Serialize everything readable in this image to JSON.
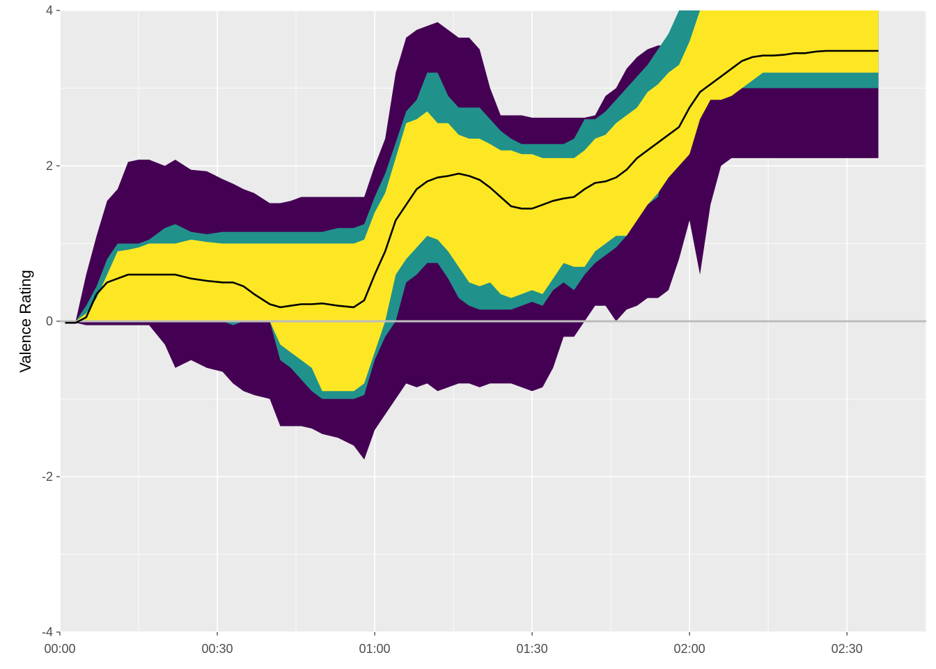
{
  "chart_data": {
    "type": "area",
    "title": "",
    "xlabel": "",
    "ylabel": "Valence Rating",
    "xlim_seconds": [
      0,
      167
    ],
    "ylim": [
      -4,
      4
    ],
    "x_ticks": [
      {
        "value": 0,
        "label": "00:00"
      },
      {
        "value": 30,
        "label": "00:30"
      },
      {
        "value": 60,
        "label": "01:00"
      },
      {
        "value": 90,
        "label": "01:30"
      },
      {
        "value": 120,
        "label": "02:00"
      },
      {
        "value": 150,
        "label": "02:30"
      }
    ],
    "y_ticks": [
      {
        "value": -4,
        "label": "-4"
      },
      {
        "value": -2,
        "label": "-2"
      },
      {
        "value": 0,
        "label": "0"
      },
      {
        "value": 2,
        "label": "2"
      },
      {
        "value": 4,
        "label": "4"
      }
    ],
    "grid": true,
    "reference_line_y": 0,
    "x": [
      1,
      3,
      5,
      7,
      9,
      11,
      13,
      15,
      17,
      20,
      22,
      25,
      28,
      31,
      33,
      35,
      37,
      40,
      42,
      44,
      46,
      48,
      50,
      53,
      56,
      58,
      60,
      62,
      64,
      66,
      68,
      70,
      72,
      74,
      76,
      78,
      80,
      82,
      84,
      86,
      88,
      90,
      92,
      94,
      96,
      98,
      100,
      102,
      104,
      106,
      108,
      110,
      112,
      114,
      116,
      118,
      120,
      122,
      124,
      126,
      128,
      130,
      132,
      134,
      136,
      138,
      140,
      142,
      144,
      146,
      148,
      150,
      152,
      154,
      156
    ],
    "series": [
      {
        "values": [
          [
            -0.02,
            0.0
          ],
          [
            -0.02,
            0.0
          ],
          [
            -0.05,
            0.6
          ],
          [
            -0.05,
            1.1
          ],
          [
            -0.05,
            1.55
          ],
          [
            -0.05,
            1.7
          ],
          [
            -0.05,
            2.05
          ],
          [
            -0.05,
            2.08
          ],
          [
            -0.05,
            2.08
          ],
          [
            -0.3,
            2.0
          ],
          [
            -0.6,
            2.08
          ],
          [
            -0.5,
            1.95
          ],
          [
            -0.6,
            1.93
          ],
          [
            -0.65,
            1.83
          ],
          [
            -0.8,
            1.77
          ],
          [
            -0.9,
            1.7
          ],
          [
            -0.95,
            1.65
          ],
          [
            -1.0,
            1.52
          ],
          [
            -1.35,
            1.52
          ],
          [
            -1.35,
            1.55
          ],
          [
            -1.35,
            1.6
          ],
          [
            -1.38,
            1.6
          ],
          [
            -1.45,
            1.6
          ],
          [
            -1.5,
            1.6
          ],
          [
            -1.6,
            1.6
          ],
          [
            -1.78,
            1.6
          ],
          [
            -1.4,
            2.0
          ],
          [
            -1.2,
            2.35
          ],
          [
            -1.0,
            3.2
          ],
          [
            -0.8,
            3.65
          ],
          [
            -0.85,
            3.75
          ],
          [
            -0.8,
            3.8
          ],
          [
            -0.9,
            3.85
          ],
          [
            -0.85,
            3.75
          ],
          [
            -0.8,
            3.65
          ],
          [
            -0.8,
            3.65
          ],
          [
            -0.85,
            3.5
          ],
          [
            -0.8,
            3.0
          ],
          [
            -0.8,
            2.65
          ],
          [
            -0.8,
            2.65
          ],
          [
            -0.85,
            2.65
          ],
          [
            -0.9,
            2.62
          ],
          [
            -0.85,
            2.62
          ],
          [
            -0.6,
            2.62
          ],
          [
            -0.2,
            2.62
          ],
          [
            -0.2,
            2.62
          ],
          [
            0.0,
            2.62
          ],
          [
            0.2,
            2.65
          ],
          [
            0.2,
            2.9
          ],
          [
            0.0,
            3.0
          ],
          [
            0.15,
            3.25
          ],
          [
            0.2,
            3.4
          ],
          [
            0.3,
            3.5
          ],
          [
            0.3,
            3.55
          ],
          [
            0.4,
            3.55
          ],
          [
            0.8,
            3.6
          ],
          [
            1.3,
            3.8
          ],
          [
            0.6,
            4.0
          ],
          [
            1.5,
            4.0
          ],
          [
            2.0,
            4.0
          ],
          [
            2.1,
            4.0
          ],
          [
            2.1,
            4.0
          ],
          [
            2.1,
            4.0
          ],
          [
            2.1,
            4.0
          ],
          [
            2.1,
            4.0
          ],
          [
            2.1,
            4.0
          ],
          [
            2.1,
            4.0
          ],
          [
            2.1,
            4.0
          ],
          [
            2.1,
            4.0
          ],
          [
            2.1,
            4.0
          ],
          [
            2.1,
            4.0
          ],
          [
            2.1,
            4.0
          ],
          [
            2.1,
            4.0
          ],
          [
            2.1,
            4.0
          ],
          [
            2.1,
            4.0
          ]
        ]
      },
      {
        "values": [
          [
            -0.02,
            0.0
          ],
          [
            -0.02,
            0.0
          ],
          [
            0.0,
            0.2
          ],
          [
            0.0,
            0.45
          ],
          [
            0.0,
            0.8
          ],
          [
            0.0,
            1.0
          ],
          [
            0.0,
            1.0
          ],
          [
            0.0,
            1.0
          ],
          [
            0.0,
            1.05
          ],
          [
            0.0,
            1.2
          ],
          [
            0.0,
            1.25
          ],
          [
            0.0,
            1.15
          ],
          [
            0.0,
            1.12
          ],
          [
            0.0,
            1.15
          ],
          [
            -0.05,
            1.15
          ],
          [
            0.0,
            1.15
          ],
          [
            0.0,
            1.15
          ],
          [
            0.0,
            1.15
          ],
          [
            -0.5,
            1.15
          ],
          [
            -0.6,
            1.15
          ],
          [
            -0.75,
            1.15
          ],
          [
            -0.9,
            1.15
          ],
          [
            -1.0,
            1.15
          ],
          [
            -1.0,
            1.2
          ],
          [
            -1.0,
            1.2
          ],
          [
            -0.95,
            1.25
          ],
          [
            -0.5,
            1.6
          ],
          [
            -0.2,
            1.9
          ],
          [
            0.0,
            2.3
          ],
          [
            0.5,
            2.7
          ],
          [
            0.6,
            2.85
          ],
          [
            0.75,
            3.2
          ],
          [
            0.75,
            3.2
          ],
          [
            0.55,
            2.9
          ],
          [
            0.3,
            2.75
          ],
          [
            0.2,
            2.75
          ],
          [
            0.15,
            2.75
          ],
          [
            0.15,
            2.6
          ],
          [
            0.15,
            2.45
          ],
          [
            0.15,
            2.35
          ],
          [
            0.2,
            2.28
          ],
          [
            0.25,
            2.28
          ],
          [
            0.2,
            2.28
          ],
          [
            0.4,
            2.28
          ],
          [
            0.5,
            2.28
          ],
          [
            0.4,
            2.35
          ],
          [
            0.6,
            2.6
          ],
          [
            0.75,
            2.6
          ],
          [
            0.85,
            2.7
          ],
          [
            0.95,
            2.85
          ],
          [
            1.1,
            3.0
          ],
          [
            1.3,
            3.15
          ],
          [
            1.5,
            3.3
          ],
          [
            1.6,
            3.5
          ],
          [
            2.3,
            3.7
          ],
          [
            2.3,
            4.0
          ],
          [
            2.5,
            4.0
          ],
          [
            2.8,
            4.0
          ],
          [
            3.0,
            4.0
          ],
          [
            3.0,
            4.0
          ],
          [
            3.0,
            4.0
          ],
          [
            3.0,
            4.0
          ],
          [
            3.0,
            4.0
          ],
          [
            3.0,
            4.0
          ],
          [
            3.0,
            4.0
          ],
          [
            3.0,
            4.0
          ],
          [
            3.0,
            4.0
          ],
          [
            3.0,
            4.0
          ],
          [
            3.0,
            4.0
          ],
          [
            3.0,
            4.0
          ],
          [
            3.0,
            4.0
          ],
          [
            3.0,
            4.0
          ],
          [
            3.0,
            4.0
          ],
          [
            3.0,
            4.0
          ],
          [
            3.0,
            4.0
          ]
        ]
      },
      {
        "values": [
          [
            -0.02,
            0.0
          ],
          [
            -0.02,
            0.0
          ],
          [
            0.0,
            0.1
          ],
          [
            0.0,
            0.3
          ],
          [
            0.0,
            0.6
          ],
          [
            0.0,
            0.9
          ],
          [
            0.0,
            0.92
          ],
          [
            0.0,
            0.95
          ],
          [
            0.0,
            1.0
          ],
          [
            0.0,
            1.0
          ],
          [
            0.0,
            1.0
          ],
          [
            0.0,
            1.05
          ],
          [
            0.0,
            1.02
          ],
          [
            0.0,
            1.0
          ],
          [
            0.0,
            1.0
          ],
          [
            0.0,
            1.0
          ],
          [
            0.0,
            1.0
          ],
          [
            0.0,
            1.0
          ],
          [
            -0.3,
            1.0
          ],
          [
            -0.4,
            1.0
          ],
          [
            -0.5,
            1.0
          ],
          [
            -0.6,
            1.0
          ],
          [
            -0.9,
            1.0
          ],
          [
            -0.9,
            1.0
          ],
          [
            -0.9,
            1.0
          ],
          [
            -0.8,
            1.05
          ],
          [
            -0.4,
            1.4
          ],
          [
            0.0,
            1.65
          ],
          [
            0.6,
            2.1
          ],
          [
            0.8,
            2.55
          ],
          [
            0.95,
            2.6
          ],
          [
            1.1,
            2.7
          ],
          [
            1.05,
            2.55
          ],
          [
            0.9,
            2.55
          ],
          [
            0.7,
            2.4
          ],
          [
            0.5,
            2.35
          ],
          [
            0.45,
            2.35
          ],
          [
            0.5,
            2.28
          ],
          [
            0.35,
            2.2
          ],
          [
            0.3,
            2.2
          ],
          [
            0.35,
            2.15
          ],
          [
            0.4,
            2.15
          ],
          [
            0.35,
            2.1
          ],
          [
            0.55,
            2.1
          ],
          [
            0.75,
            2.1
          ],
          [
            0.7,
            2.1
          ],
          [
            0.7,
            2.2
          ],
          [
            0.9,
            2.35
          ],
          [
            1.0,
            2.4
          ],
          [
            1.1,
            2.55
          ],
          [
            1.1,
            2.65
          ],
          [
            1.3,
            2.75
          ],
          [
            1.5,
            2.95
          ],
          [
            1.65,
            3.05
          ],
          [
            1.85,
            3.2
          ],
          [
            2.0,
            3.3
          ],
          [
            2.15,
            3.6
          ],
          [
            2.6,
            4.0
          ],
          [
            2.85,
            4.0
          ],
          [
            2.85,
            4.0
          ],
          [
            2.9,
            4.0
          ],
          [
            3.0,
            4.0
          ],
          [
            3.1,
            4.0
          ],
          [
            3.2,
            4.0
          ],
          [
            3.2,
            4.0
          ],
          [
            3.2,
            4.0
          ],
          [
            3.2,
            4.0
          ],
          [
            3.2,
            4.0
          ],
          [
            3.2,
            4.0
          ],
          [
            3.2,
            4.0
          ],
          [
            3.2,
            4.0
          ],
          [
            3.2,
            4.0
          ],
          [
            3.2,
            4.0
          ],
          [
            3.2,
            4.0
          ],
          [
            3.2,
            4.0
          ]
        ]
      },
      {
        "values": [
          -0.02,
          -0.02,
          0.05,
          0.35,
          0.5,
          0.55,
          0.6,
          0.6,
          0.6,
          0.6,
          0.6,
          0.55,
          0.52,
          0.5,
          0.5,
          0.45,
          0.35,
          0.22,
          0.18,
          0.2,
          0.22,
          0.22,
          0.23,
          0.2,
          0.18,
          0.27,
          0.6,
          0.9,
          1.3,
          1.5,
          1.7,
          1.8,
          1.85,
          1.87,
          1.9,
          1.87,
          1.82,
          1.72,
          1.6,
          1.48,
          1.45,
          1.45,
          1.5,
          1.55,
          1.58,
          1.6,
          1.7,
          1.78,
          1.8,
          1.85,
          1.95,
          2.1,
          2.2,
          2.3,
          2.4,
          2.5,
          2.75,
          2.95,
          3.05,
          3.15,
          3.25,
          3.35,
          3.4,
          3.42,
          3.42,
          3.43,
          3.45,
          3.45,
          3.47,
          3.48,
          3.48,
          3.48,
          3.48,
          3.48,
          3.48
        ]
      }
    ],
    "colors": {
      "band_outer": "#440154",
      "band_middle": "#21918c",
      "band_inner": "#fde725",
      "median_line": "#000000",
      "zero_line": "#bdbdbd",
      "panel_background": "#ebebeb",
      "grid": "#ffffff"
    }
  }
}
